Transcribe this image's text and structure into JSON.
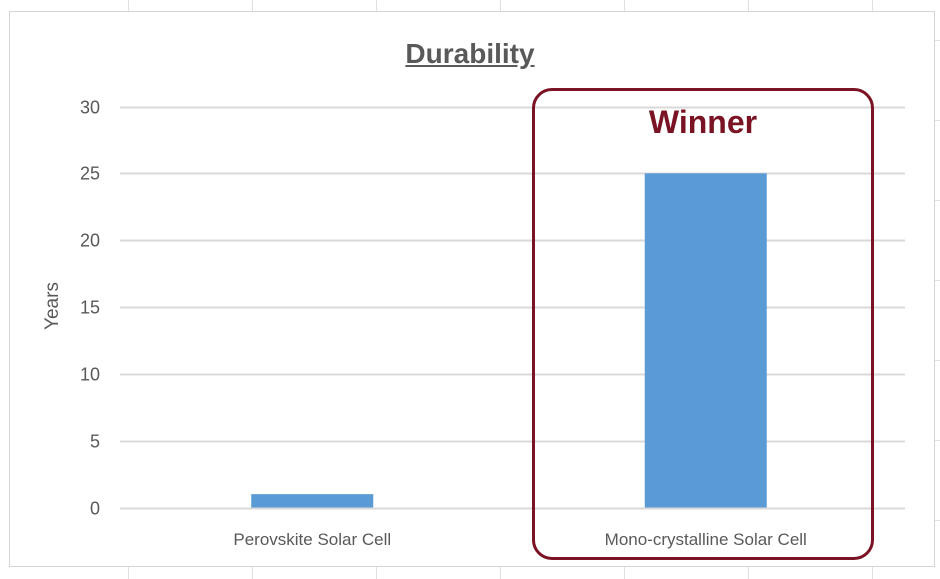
{
  "chart_data": {
    "type": "bar",
    "title": "Durability",
    "xlabel": "",
    "ylabel": "Years",
    "categories": [
      "Perovskite Solar Cell",
      "Mono-crystalline Solar Cell"
    ],
    "values": [
      1,
      25
    ],
    "ylim": [
      0,
      30
    ],
    "yticks": [
      0,
      5,
      10,
      15,
      20,
      25,
      30
    ],
    "grid": true,
    "legend": "none",
    "bar_color": "#5b9bd5",
    "annotation": {
      "text": "Winner",
      "category": "Mono-crystalline Solar Cell",
      "color": "#7a1424"
    }
  }
}
